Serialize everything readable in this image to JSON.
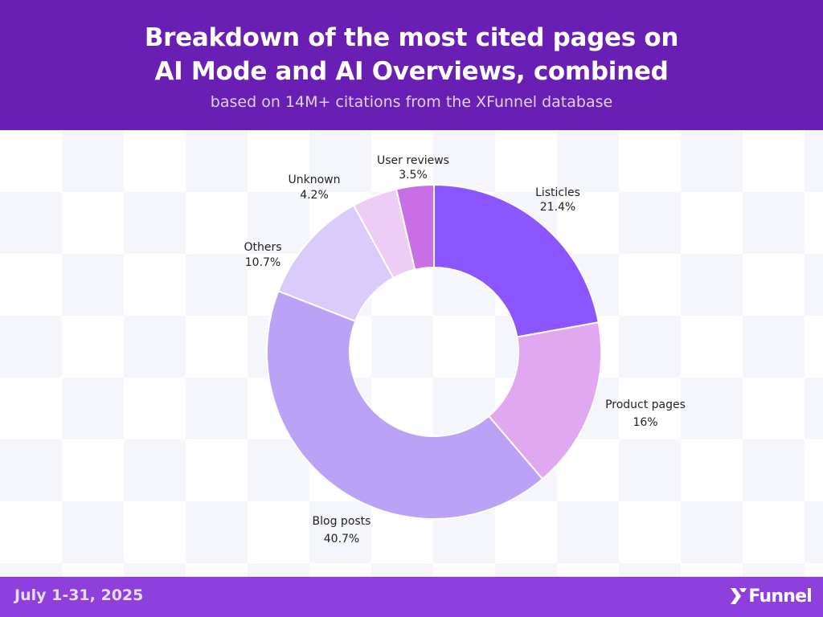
{
  "header": {
    "title_line1": "Breakdown of the most cited pages on",
    "title_line2": "AI Mode and AI Overviews, combined",
    "subtitle": "based on 14M+ citations from the XFunnel database"
  },
  "footer": {
    "date": "July 1-31, 2025",
    "logo_text": "Funnel"
  },
  "colors": {
    "header_bg": "#6a1fb4",
    "footer_bg": "#8e3fdc"
  },
  "chart_data": {
    "type": "pie",
    "variant": "donut",
    "title": "Breakdown of the most cited pages on AI Mode and AI Overviews, combined",
    "subtitle": "based on 14M+ citations from the XFunnel database",
    "unit": "%",
    "legend": "none",
    "categories": [
      "Listicles",
      "Product pages",
      "Blog posts",
      "Others",
      "Unknown",
      "User reviews"
    ],
    "values": [
      21.4,
      16,
      40.7,
      10.7,
      4.2,
      3.5
    ],
    "value_labels": [
      "21.4%",
      "16%",
      "40.7%",
      "10.7%",
      "4.2%",
      "3.5%"
    ],
    "colors": [
      "#8b55ff",
      "#e0a8f0",
      "#bca2f6",
      "#d9cbfa",
      "#edcdf6",
      "#ae7be8",
      "#c86fe6"
    ],
    "slice_color_index": [
      0,
      1,
      2,
      3,
      4,
      5
    ]
  }
}
